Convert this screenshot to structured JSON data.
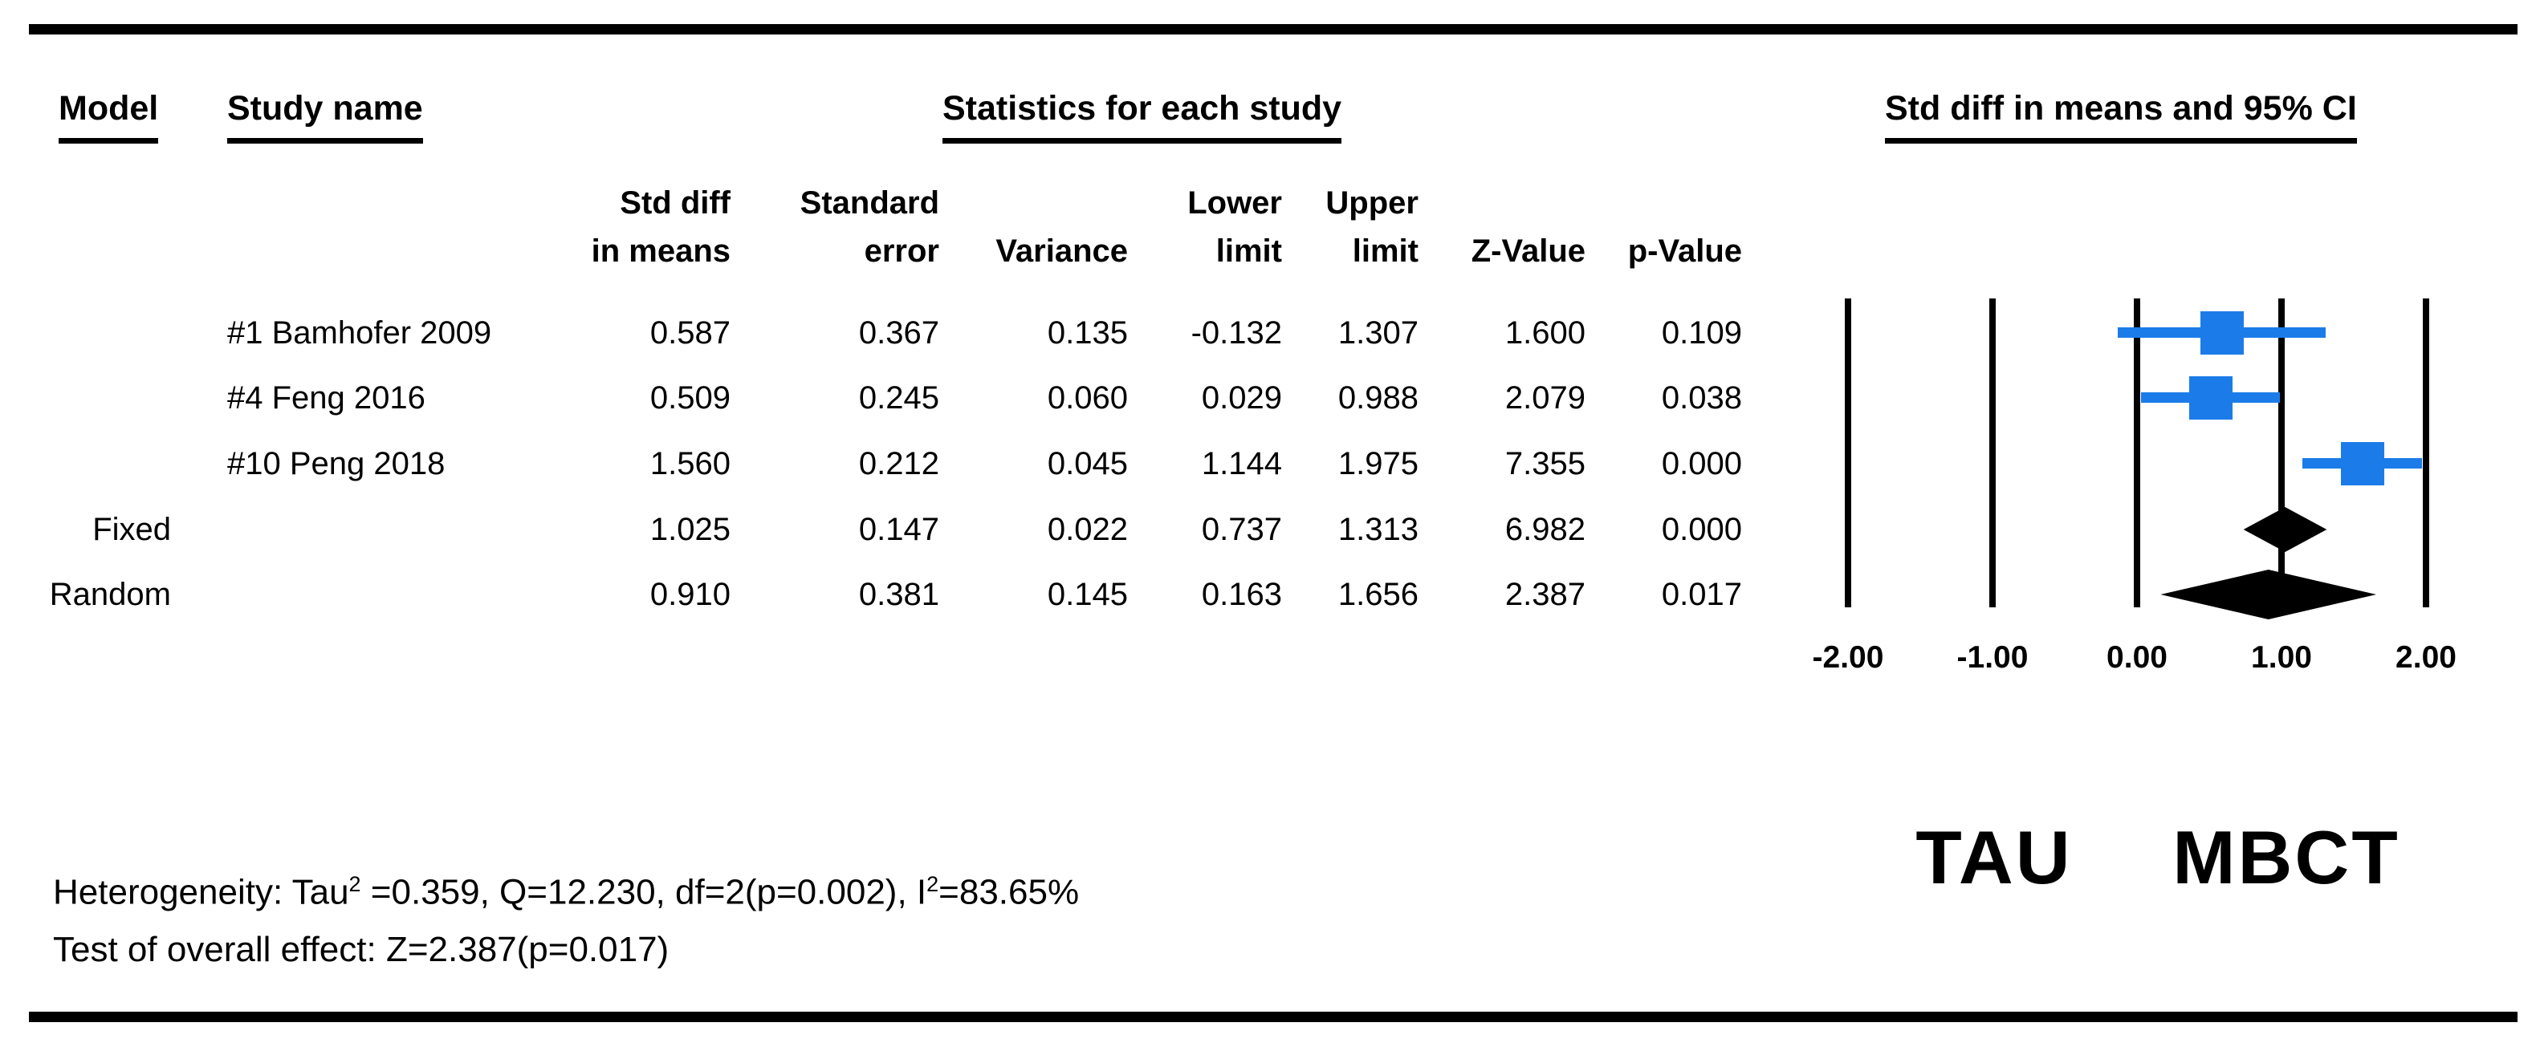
{
  "figure": {
    "model_col_label": "Model",
    "study_col_label": "Study name",
    "stats_section_title": "Statistics for each study",
    "plot_section_title": "Std diff in means and 95% CI"
  },
  "columns": {
    "line1": {
      "std_diff": "Std diff",
      "std_err": "Standard",
      "lower": "Lower",
      "upper": "Upper"
    },
    "line2": {
      "std_diff": "in means",
      "std_err": "error",
      "variance": "Variance",
      "lower": "limit",
      "upper": "limit",
      "z": "Z-Value",
      "p": "p-Value"
    }
  },
  "rows": [
    {
      "model": "",
      "study": "#1 Bamhofer 2009",
      "std_diff": "0.587",
      "std_err": "0.367",
      "variance": "0.135",
      "lower": "-0.132",
      "upper": "1.307",
      "z": "1.600",
      "p": "0.109"
    },
    {
      "model": "",
      "study": "#4 Feng 2016",
      "std_diff": "0.509",
      "std_err": "0.245",
      "variance": "0.060",
      "lower": "0.029",
      "upper": "0.988",
      "z": "2.079",
      "p": "0.038"
    },
    {
      "model": "",
      "study": "#10 Peng 2018",
      "std_diff": "1.560",
      "std_err": "0.212",
      "variance": "0.045",
      "lower": "1.144",
      "upper": "1.975",
      "z": "7.355",
      "p": "0.000"
    },
    {
      "model": "Fixed",
      "study": "",
      "std_diff": "1.025",
      "std_err": "0.147",
      "variance": "0.022",
      "lower": "0.737",
      "upper": "1.313",
      "z": "6.982",
      "p": "0.000"
    },
    {
      "model": "Random",
      "study": "",
      "std_diff": "0.910",
      "std_err": "0.381",
      "variance": "0.145",
      "lower": "0.163",
      "upper": "1.656",
      "z": "2.387",
      "p": "0.017"
    }
  ],
  "chart_data": {
    "type": "forest",
    "title": "Std diff in means and 95% CI",
    "xlim": [
      -2,
      2
    ],
    "tick_values": [
      -2,
      -1,
      0,
      1,
      2
    ],
    "tick_labels": [
      "-2.00",
      "-1.00",
      "0.00",
      "1.00",
      "2.00"
    ],
    "series": [
      {
        "name": "#1 Bamhofer 2009",
        "marker": "square",
        "estimate": 0.587,
        "lower": -0.132,
        "upper": 1.307
      },
      {
        "name": "#4 Feng 2016",
        "marker": "square",
        "estimate": 0.509,
        "lower": 0.029,
        "upper": 0.988
      },
      {
        "name": "#10 Peng 2018",
        "marker": "square",
        "estimate": 1.56,
        "lower": 1.144,
        "upper": 1.975
      },
      {
        "name": "Fixed",
        "marker": "diamond",
        "estimate": 1.025,
        "lower": 0.737,
        "upper": 1.313
      },
      {
        "name": "Random",
        "marker": "diamond",
        "estimate": 0.91,
        "lower": 0.163,
        "upper": 1.656
      }
    ],
    "group_labels": [
      {
        "text": "TAU",
        "x": -1
      },
      {
        "text": "MBCT",
        "x": 1
      }
    ],
    "marker_color": "#1b7ce9",
    "line_color": "#000000",
    "grid": true,
    "legend": "none"
  },
  "footer": {
    "heterogeneity_prefix": "Heterogeneity: Tau",
    "heterogeneity_sup1": "2",
    "heterogeneity_mid": " =0.359, Q=12.230, df=2(p=0.002), I",
    "heterogeneity_sup2": "2",
    "heterogeneity_suffix": "=83.65%",
    "overall_effect": "Test of overall effect: Z=2.387(p=0.017)"
  },
  "colors": {
    "marker_blue": "#1b7ce9",
    "ink": "#000000",
    "background": "#ffffff"
  }
}
